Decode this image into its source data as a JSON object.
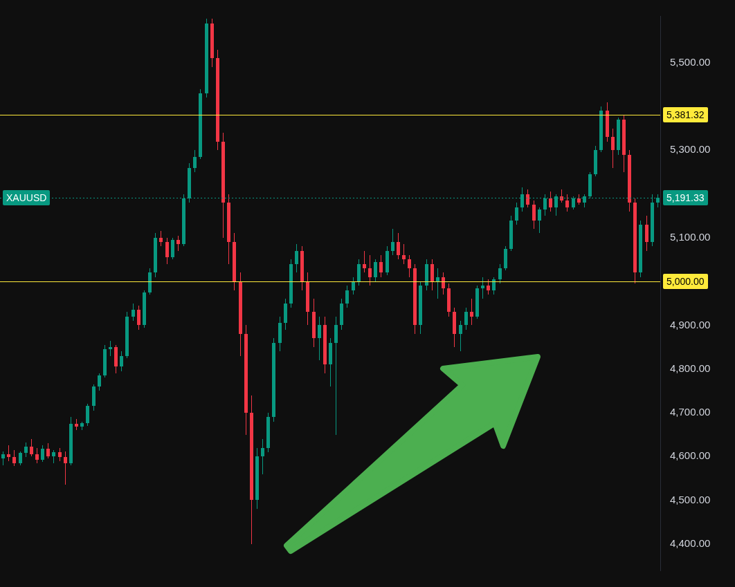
{
  "chart_data": {
    "type": "candlestick",
    "categories": [
      null,
      null,
      null,
      null,
      null,
      null,
      null,
      null,
      null,
      null,
      null,
      null,
      null,
      null,
      null,
      null,
      null,
      null,
      null,
      null,
      null,
      null,
      null,
      null,
      null,
      null,
      null,
      null,
      null,
      null,
      null,
      null,
      null,
      null,
      null,
      null,
      null,
      null,
      null,
      null,
      null,
      null,
      null,
      null,
      null,
      null,
      null,
      null,
      null,
      null,
      null,
      null,
      null,
      null,
      null,
      null,
      null,
      null,
      null,
      null,
      null,
      null,
      null,
      null,
      null,
      null,
      null,
      null,
      null,
      null,
      null,
      null,
      null,
      null,
      null,
      null,
      null,
      null,
      null,
      null,
      null,
      null,
      null,
      null,
      null,
      null,
      null,
      null,
      null,
      null,
      null,
      null,
      null,
      null,
      null,
      null,
      null,
      null,
      null,
      null,
      null,
      null,
      null,
      null,
      null,
      null,
      null,
      null,
      null,
      null,
      null,
      null,
      null,
      null,
      null,
      null,
      null
    ],
    "ohlc": [
      [
        4595,
        4612,
        4580,
        4605
      ],
      [
        4605,
        4625,
        4590,
        4598
      ],
      [
        4598,
        4615,
        4578,
        4585
      ],
      [
        4585,
        4612,
        4580,
        4608
      ],
      [
        4608,
        4632,
        4598,
        4622
      ],
      [
        4622,
        4640,
        4600,
        4605
      ],
      [
        4605,
        4620,
        4585,
        4592
      ],
      [
        4592,
        4625,
        4588,
        4618
      ],
      [
        4618,
        4630,
        4596,
        4600
      ],
      [
        4600,
        4615,
        4585,
        4610
      ],
      [
        4610,
        4620,
        4590,
        4598
      ],
      [
        4598,
        4612,
        4535,
        4585
      ],
      [
        4585,
        4690,
        4580,
        4675
      ],
      [
        4675,
        4685,
        4660,
        4668
      ],
      [
        4668,
        4680,
        4660,
        4676
      ],
      [
        4676,
        4720,
        4670,
        4715
      ],
      [
        4715,
        4765,
        4705,
        4760
      ],
      [
        4760,
        4790,
        4750,
        4785
      ],
      [
        4785,
        4855,
        4780,
        4845
      ],
      [
        4845,
        4865,
        4830,
        4850
      ],
      [
        4850,
        4855,
        4790,
        4805
      ],
      [
        4805,
        4840,
        4795,
        4830
      ],
      [
        4830,
        4930,
        4825,
        4920
      ],
      [
        4920,
        4950,
        4910,
        4935
      ],
      [
        4935,
        4945,
        4890,
        4900
      ],
      [
        4900,
        4980,
        4895,
        4975
      ],
      [
        4975,
        5030,
        4970,
        5020
      ],
      [
        5020,
        5110,
        5010,
        5100
      ],
      [
        5100,
        5115,
        5080,
        5090
      ],
      [
        5090,
        5100,
        5040,
        5055
      ],
      [
        5055,
        5100,
        5050,
        5095
      ],
      [
        5095,
        5105,
        5070,
        5085
      ],
      [
        5085,
        5200,
        5080,
        5190
      ],
      [
        5190,
        5270,
        5180,
        5260
      ],
      [
        5260,
        5300,
        5250,
        5285
      ],
      [
        5285,
        5440,
        5280,
        5430
      ],
      [
        5430,
        5600,
        5420,
        5590
      ],
      [
        5590,
        5600,
        5490,
        5510
      ],
      [
        5510,
        5530,
        5300,
        5320
      ],
      [
        5320,
        5340,
        5100,
        5180
      ],
      [
        5180,
        5200,
        5040,
        5090
      ],
      [
        5090,
        5110,
        4980,
        5000
      ],
      [
        5000,
        5020,
        4830,
        4880
      ],
      [
        4880,
        4900,
        4650,
        4700
      ],
      [
        4700,
        4740,
        4400,
        4500
      ],
      [
        4500,
        4620,
        4480,
        4600
      ],
      [
        4600,
        4640,
        4560,
        4620
      ],
      [
        4620,
        4700,
        4610,
        4690
      ],
      [
        4690,
        4870,
        4680,
        4860
      ],
      [
        4860,
        4920,
        4840,
        4905
      ],
      [
        4905,
        4960,
        4890,
        4950
      ],
      [
        4950,
        5050,
        4940,
        5040
      ],
      [
        5040,
        5085,
        5020,
        5070
      ],
      [
        5070,
        5080,
        4980,
        5000
      ],
      [
        5000,
        5020,
        4900,
        4930
      ],
      [
        4930,
        4960,
        4850,
        4870
      ],
      [
        4870,
        4920,
        4820,
        4900
      ],
      [
        4900,
        4920,
        4790,
        4810
      ],
      [
        4810,
        4870,
        4760,
        4860
      ],
      [
        4860,
        4920,
        4650,
        4900
      ],
      [
        4900,
        4960,
        4890,
        4950
      ],
      [
        4950,
        4990,
        4940,
        4980
      ],
      [
        4980,
        5010,
        4970,
        5000
      ],
      [
        5000,
        5050,
        4990,
        5040
      ],
      [
        5040,
        5070,
        5020,
        5030
      ],
      [
        5030,
        5060,
        4990,
        5010
      ],
      [
        5010,
        5050,
        5000,
        5045
      ],
      [
        5045,
        5060,
        5010,
        5020
      ],
      [
        5020,
        5080,
        5015,
        5070
      ],
      [
        5070,
        5120,
        5060,
        5090
      ],
      [
        5090,
        5110,
        5050,
        5060
      ],
      [
        5060,
        5085,
        5040,
        5050
      ],
      [
        5050,
        5060,
        5010,
        5030
      ],
      [
        5030,
        5040,
        4880,
        4900
      ],
      [
        4900,
        5000,
        4880,
        4990
      ],
      [
        4990,
        5050,
        4980,
        5040
      ],
      [
        5040,
        5050,
        4980,
        5000
      ],
      [
        5000,
        5030,
        4960,
        5010
      ],
      [
        5010,
        5020,
        4970,
        4985
      ],
      [
        4985,
        4995,
        4920,
        4930
      ],
      [
        4930,
        4940,
        4850,
        4880
      ],
      [
        4880,
        4910,
        4840,
        4900
      ],
      [
        4900,
        4940,
        4890,
        4930
      ],
      [
        4930,
        4960,
        4900,
        4920
      ],
      [
        4920,
        4990,
        4915,
        4985
      ],
      [
        4985,
        5010,
        4960,
        4990
      ],
      [
        4990,
        5005,
        4970,
        4980
      ],
      [
        4980,
        5010,
        4970,
        5005
      ],
      [
        5005,
        5040,
        4995,
        5030
      ],
      [
        5030,
        5080,
        5025,
        5075
      ],
      [
        5075,
        5150,
        5070,
        5140
      ],
      [
        5140,
        5180,
        5130,
        5170
      ],
      [
        5170,
        5215,
        5160,
        5200
      ],
      [
        5200,
        5210,
        5170,
        5175
      ],
      [
        5175,
        5185,
        5120,
        5140
      ],
      [
        5140,
        5170,
        5110,
        5165
      ],
      [
        5165,
        5200,
        5150,
        5190
      ],
      [
        5190,
        5205,
        5160,
        5170
      ],
      [
        5170,
        5200,
        5150,
        5195
      ],
      [
        5195,
        5210,
        5180,
        5185
      ],
      [
        5185,
        5200,
        5160,
        5170
      ],
      [
        5170,
        5195,
        5165,
        5190
      ],
      [
        5190,
        5200,
        5175,
        5180
      ],
      [
        5180,
        5200,
        5170,
        5195
      ],
      [
        5195,
        5250,
        5190,
        5245
      ],
      [
        5245,
        5310,
        5240,
        5300
      ],
      [
        5300,
        5400,
        5295,
        5390
      ],
      [
        5390,
        5410,
        5320,
        5330
      ],
      [
        5330,
        5350,
        5260,
        5300
      ],
      [
        5300,
        5375,
        5290,
        5370
      ],
      [
        5370,
        5381,
        5250,
        5290
      ],
      [
        5290,
        5300,
        5160,
        5180
      ],
      [
        5180,
        5190,
        4995,
        5020
      ],
      [
        5020,
        5140,
        5010,
        5130
      ],
      [
        5130,
        5150,
        5070,
        5090
      ],
      [
        5090,
        5200,
        5080,
        5180
      ],
      [
        5180,
        5200,
        5170,
        5191.33
      ]
    ],
    "colors": [
      "#089981",
      "#f23645",
      "#f23645",
      "#089981",
      "#089981",
      "#f23645",
      "#f23645",
      "#089981",
      "#f23645",
      "#089981",
      "#f23645",
      "#f23645",
      "#089981",
      "#f23645",
      "#089981",
      "#089981",
      "#089981",
      "#089981",
      "#089981",
      "#089981",
      "#f23645",
      "#089981",
      "#089981",
      "#089981",
      "#f23645",
      "#089981",
      "#089981",
      "#089981",
      "#f23645",
      "#f23645",
      "#089981",
      "#f23645",
      "#089981",
      "#089981",
      "#089981",
      "#089981",
      "#089981",
      "#f23645",
      "#f23645",
      "#f23645",
      "#f23645",
      "#f23645",
      "#f23645",
      "#f23645",
      "#f23645",
      "#089981",
      "#089981",
      "#089981",
      "#089981",
      "#089981",
      "#089981",
      "#089981",
      "#089981",
      "#f23645",
      "#f23645",
      "#f23645",
      "#089981",
      "#f23645",
      "#089981",
      "#089981",
      "#089981",
      "#089981",
      "#089981",
      "#089981",
      "#f23645",
      "#f23645",
      "#089981",
      "#f23645",
      "#089981",
      "#089981",
      "#f23645",
      "#f23645",
      "#f23645",
      "#f23645",
      "#089981",
      "#089981",
      "#f23645",
      "#089981",
      "#f23645",
      "#f23645",
      "#f23645",
      "#089981",
      "#089981",
      "#f23645",
      "#089981",
      "#089981",
      "#f23645",
      "#089981",
      "#089981",
      "#089981",
      "#089981",
      "#089981",
      "#089981",
      "#f23645",
      "#f23645",
      "#089981",
      "#089981",
      "#f23645",
      "#089981",
      "#f23645",
      "#f23645",
      "#089981",
      "#f23645",
      "#089981",
      "#089981",
      "#089981",
      "#089981",
      "#f23645",
      "#f23645",
      "#089981",
      "#f23645",
      "#f23645",
      "#f23645",
      "#089981",
      "#f23645",
      "#089981",
      "#089981"
    ],
    "ylim": [
      4338,
      5607
    ],
    "yticks": [
      {
        "value": 4400,
        "label": "4,400.00"
      },
      {
        "value": 4500,
        "label": "4,500.00"
      },
      {
        "value": 4600,
        "label": "4,600.00"
      },
      {
        "value": 4700,
        "label": "4,700.00"
      },
      {
        "value": 4800,
        "label": "4,800.00"
      },
      {
        "value": 4900,
        "label": "4,900.00"
      },
      {
        "value": 5100,
        "label": "5,100.00"
      },
      {
        "value": 5300,
        "label": "5,300.00"
      },
      {
        "value": 5500,
        "label": "5,500.00"
      }
    ],
    "ref_lines": [
      {
        "axis": "y",
        "value": 5381.32,
        "label": "5,381.32",
        "color": "#ffeb3b",
        "line_style": "solid"
      },
      {
        "axis": "y",
        "value": 5000,
        "label": "5,000.00",
        "color": "#ffeb3b",
        "line_style": "solid"
      },
      {
        "axis": "y",
        "value": 5191.33,
        "label": "5,191.33",
        "color": "#089981",
        "line_style": "dotted"
      }
    ],
    "annotations": [
      {
        "text": "XAUUSD",
        "y": 5191.33
      }
    ],
    "grid": false,
    "legend": false
  }
}
